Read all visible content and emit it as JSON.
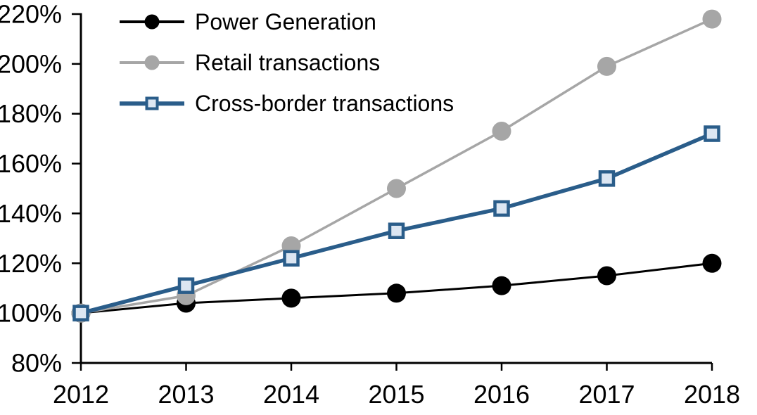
{
  "chart_data": {
    "type": "line",
    "title": "",
    "x": [
      "2012",
      "2013",
      "2014",
      "2015",
      "2016",
      "2017",
      "2018"
    ],
    "series": [
      {
        "name": "Power Generation",
        "values": [
          100,
          104,
          106,
          108,
          111,
          115,
          120
        ],
        "color": "#000000",
        "marker": "circle",
        "marker_fill": "#000000",
        "line_width": 3
      },
      {
        "name": "Retail transactions",
        "values": [
          100,
          107,
          127,
          150,
          173,
          199,
          218
        ],
        "color": "#a6a6a6",
        "marker": "circle",
        "marker_fill": "#a6a6a6",
        "line_width": 3.5
      },
      {
        "name": "Cross-border transactions",
        "values": [
          100,
          111,
          122,
          133,
          142,
          154,
          172
        ],
        "color": "#2a5d8a",
        "marker": "square",
        "marker_fill": "#dce6f2",
        "line_width": 5.5
      }
    ],
    "y_tick_labels": [
      "220%",
      "200%",
      "180%",
      "160%",
      "140%",
      "120%",
      "100%",
      "80%"
    ],
    "ylim": [
      80,
      220
    ],
    "ytick_step": 20,
    "unit": "%",
    "grid": false,
    "legend_position": "top-left",
    "axis_color": "#000000",
    "background": "#ffffff"
  }
}
